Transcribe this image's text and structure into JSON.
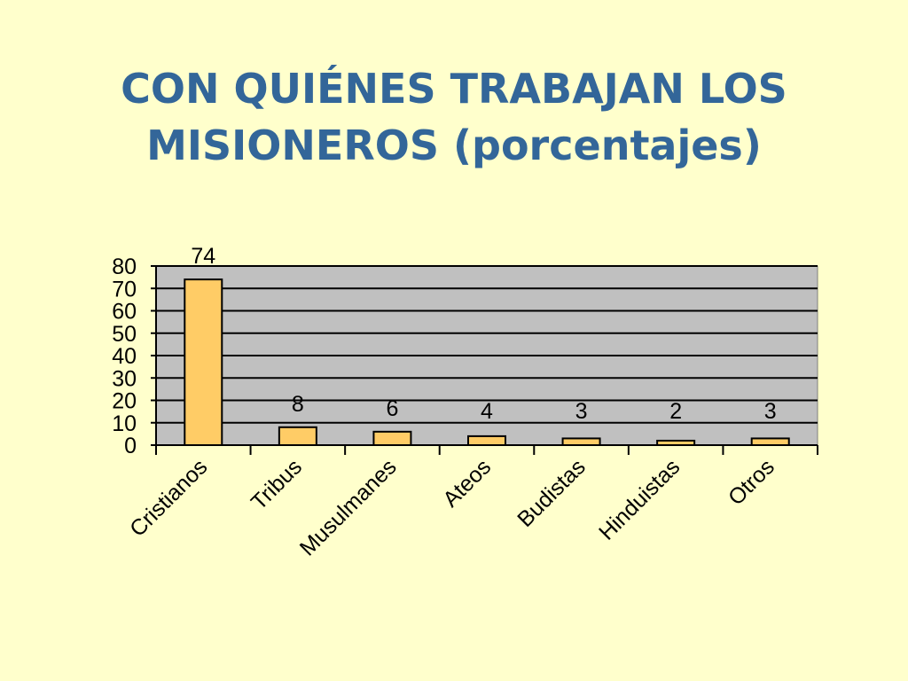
{
  "slide": {
    "title_line1": "CON QUIÉNES TRABAJAN LOS",
    "title_line2": "MISIONEROS (porcentajes)"
  },
  "colors": {
    "background": "#FFFFCC",
    "title": "#336699",
    "plot_area": "#C0C0C0",
    "bar_fill": "#FFCC66",
    "bar_stroke": "#000000",
    "gridline": "#000000"
  },
  "chart_data": {
    "type": "bar",
    "title": "CON QUIÉNES TRABAJAN LOS MISIONEROS (porcentajes)",
    "categories": [
      "Cristianos",
      "Tribus",
      "Musulmanes",
      "Ateos",
      "Budistas",
      "Hinduistas",
      "Otros"
    ],
    "values": [
      74,
      8,
      6,
      4,
      3,
      2,
      3
    ],
    "data_labels": [
      "74",
      "8",
      "6",
      "4",
      "3",
      "2",
      "3"
    ],
    "xlabel": "",
    "ylabel": "",
    "ylim": [
      0,
      80
    ],
    "yticks": [
      "0",
      "10",
      "20",
      "30",
      "40",
      "50",
      "60",
      "70",
      "80"
    ],
    "grid": true,
    "legend": "none"
  }
}
